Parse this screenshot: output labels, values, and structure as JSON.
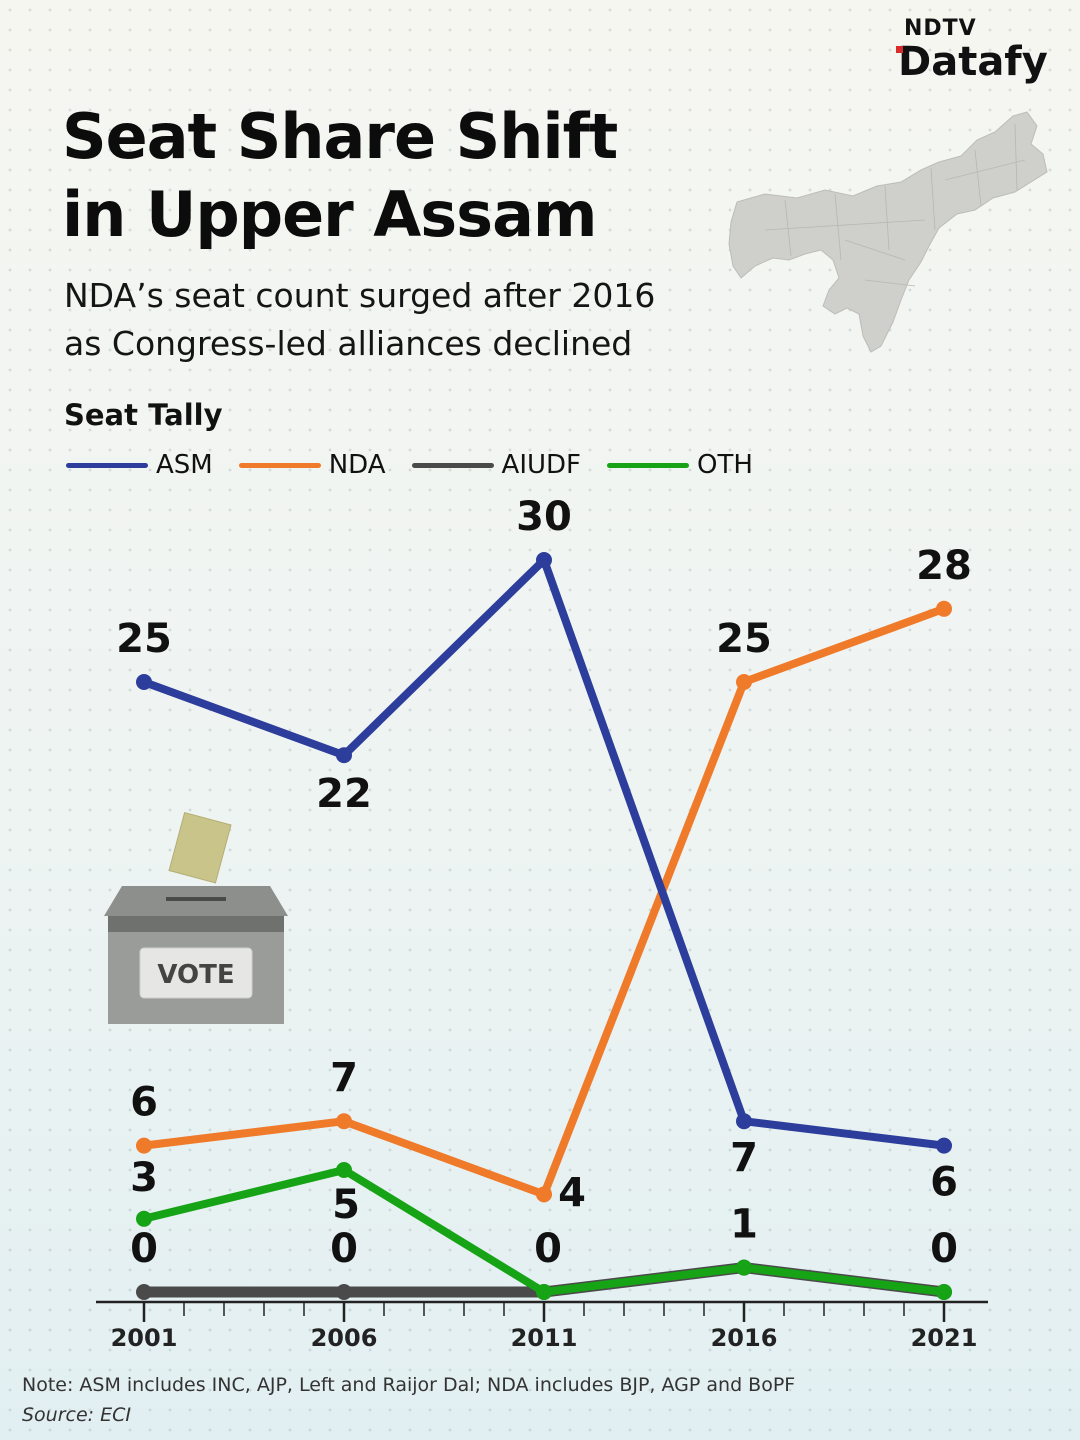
{
  "brand": {
    "top": "NDTV",
    "bottom": "Datafy"
  },
  "header": {
    "title_line1": "Seat Share Shift",
    "title_line2": "in Upper Assam",
    "subtitle_line1": "NDA’s seat count surged after 2016",
    "subtitle_line2": "as Congress-led alliances declined"
  },
  "illustration": {
    "ballot_label": "VOTE"
  },
  "footer": {
    "note": "Note: ASM includes INC, AJP, Left and Raijor Dal; NDA includes BJP, AGP and BoPF",
    "source": "Source: ECI"
  },
  "chart_data": {
    "type": "line",
    "title": "Seat Tally",
    "x": [
      "2001",
      "2006",
      "2011",
      "2016",
      "2021"
    ],
    "ylim": [
      0,
      30
    ],
    "grid": false,
    "legend_placement": "top-left",
    "series": [
      {
        "name": "ASM",
        "color": "#2d3d9b",
        "values": [
          25,
          22,
          30,
          7,
          6
        ]
      },
      {
        "name": "NDA",
        "color": "#ef7a2a",
        "values": [
          6,
          7,
          4,
          25,
          28
        ]
      },
      {
        "name": "AIUDF",
        "color": "#4a4a4a",
        "values": [
          0,
          0,
          0,
          1,
          0
        ]
      },
      {
        "name": "OTH",
        "color": "#16a316",
        "values": [
          3,
          5,
          0,
          1,
          0
        ]
      }
    ]
  }
}
